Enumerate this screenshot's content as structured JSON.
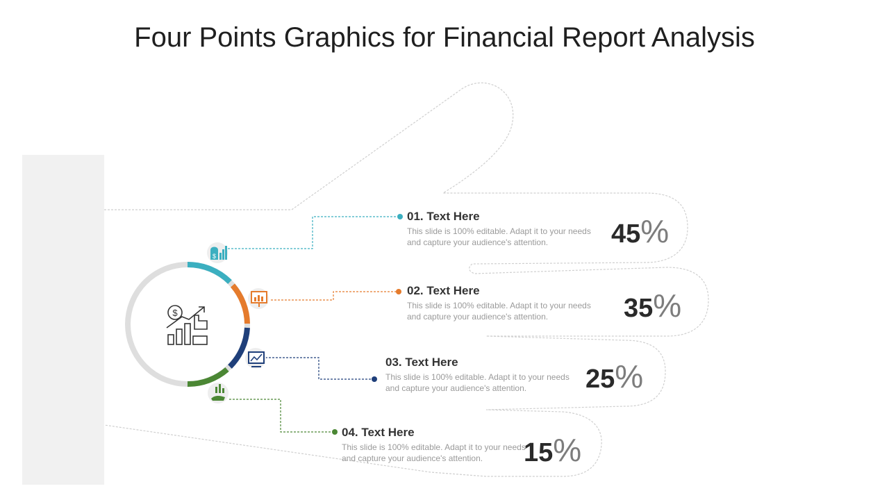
{
  "title": "Four Points Graphics for Financial Report Analysis",
  "colors": {
    "teal": "#3bafc0",
    "orange": "#e57b2c",
    "navy": "#1f3f7a",
    "green": "#4b8734",
    "ring": "#dedede"
  },
  "center_icon": "growth-chart-dollar-icon",
  "points": [
    {
      "heading": "01. Text Here",
      "description": "This slide is 100% editable. Adapt it to your needs and capture your audience's attention.",
      "value": "45",
      "symbol": "%",
      "icon": "money-bag-chart-icon",
      "color": "teal"
    },
    {
      "heading": "02. Text Here",
      "description": "This slide is 100% editable. Adapt it to your needs and capture your audience's attention.",
      "value": "35",
      "symbol": "%",
      "icon": "presentation-board-icon",
      "color": "orange"
    },
    {
      "heading": "03. Text Here",
      "description": "This slide is 100% editable. Adapt it to your needs and capture your audience's attention.",
      "value": "25",
      "symbol": "%",
      "icon": "monitor-chart-icon",
      "color": "navy"
    },
    {
      "heading": "04. Text Here",
      "description": "This slide is 100% editable. Adapt it to your needs and capture your audience's attention.",
      "value": "15",
      "symbol": "%",
      "icon": "hand-chart-icon",
      "color": "green"
    }
  ]
}
